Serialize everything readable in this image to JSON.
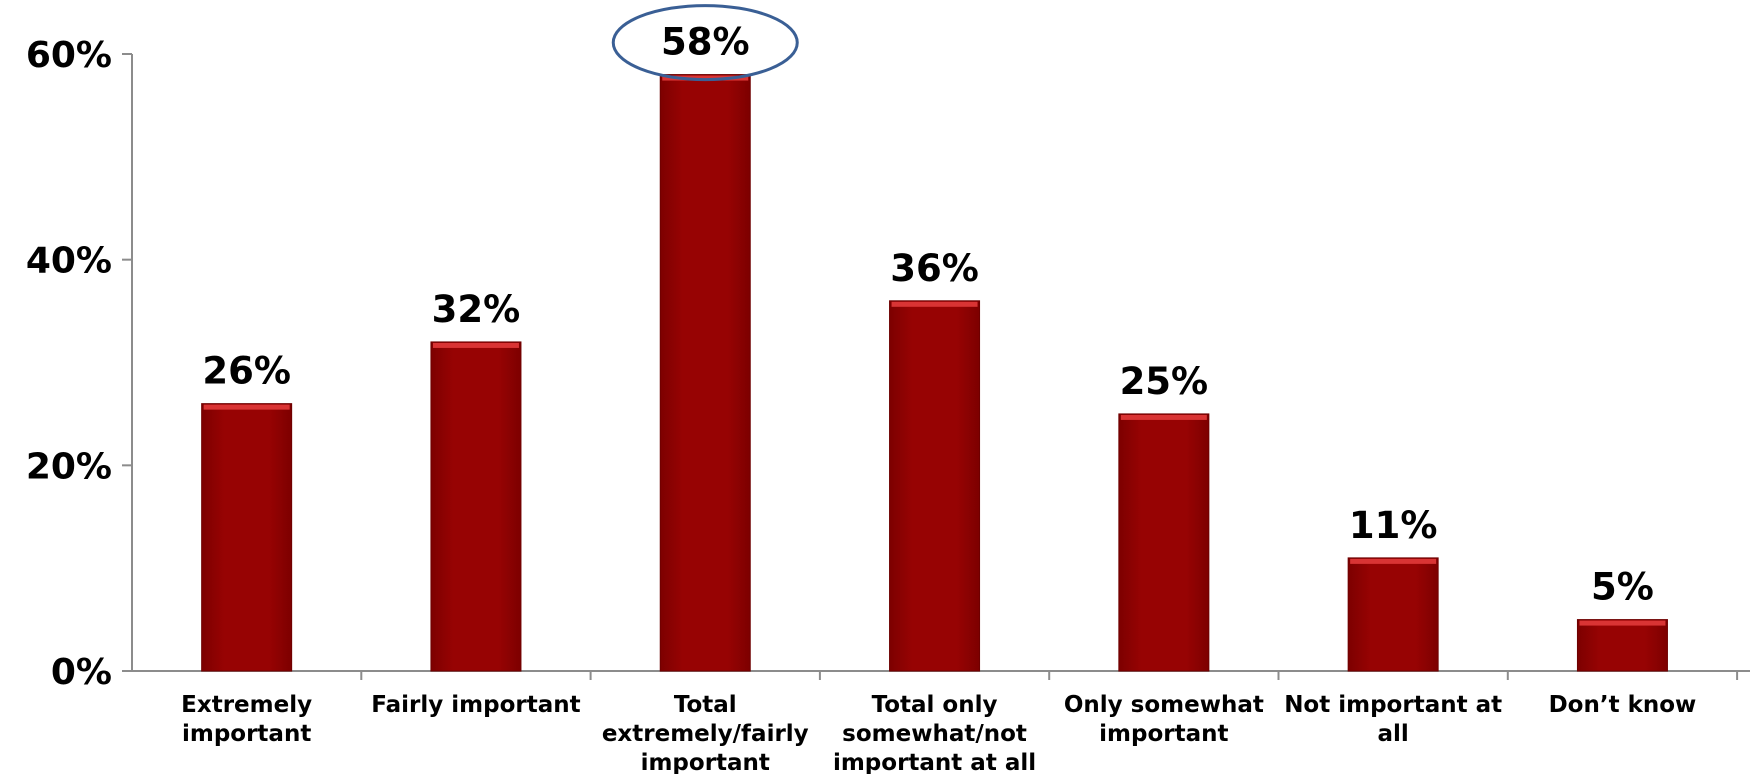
{
  "chart_data": {
    "type": "bar",
    "categories": [
      [
        "Extremely",
        "important"
      ],
      [
        "Fairly important"
      ],
      [
        "Total",
        "extremely/fairly",
        "important"
      ],
      [
        "Total only",
        "somewhat/not",
        "important at all"
      ],
      [
        "Only somewhat",
        "important"
      ],
      [
        "Not important at",
        "all"
      ],
      [
        "Don’t know"
      ]
    ],
    "values": [
      26,
      32,
      58,
      36,
      25,
      11,
      5
    ],
    "value_labels": [
      "26%",
      "32%",
      "58%",
      "36%",
      "25%",
      "11%",
      "5%"
    ],
    "yticks": [
      0,
      20,
      40,
      60
    ],
    "ytick_labels": [
      "0%",
      "20%",
      "40%",
      "60%"
    ],
    "ylim": [
      0,
      60
    ],
    "grid": false,
    "legend": "none",
    "highlighted_index": 2,
    "colors": {
      "bar": "#970303",
      "bar_top": "#d93434",
      "bar_edge": "#6e0000",
      "axis": "#8c8c8c",
      "highlight_ellipse": "#3a5f95"
    }
  }
}
